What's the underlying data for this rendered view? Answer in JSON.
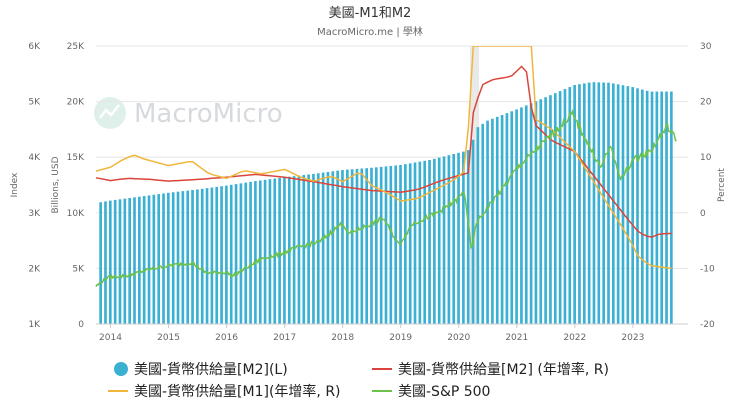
{
  "chart_data": {
    "type": "bar+line",
    "title": "美國-M1和M2",
    "subtitle": "MacroMicro.me | 學林",
    "watermark": "MacroMicro",
    "x_ticks": [
      "2014",
      "2015",
      "2016",
      "2017",
      "2018",
      "2019",
      "2020",
      "2021",
      "2022",
      "2023"
    ],
    "x_range": [
      2013.75,
      2023.95
    ],
    "axes": {
      "index": {
        "title": "Index",
        "ticks": [
          "1K",
          "2K",
          "3K",
          "4K",
          "5K",
          "6K"
        ],
        "range": [
          1000,
          6000
        ]
      },
      "billions": {
        "title": "Billions, USD",
        "ticks": [
          "0",
          "5K",
          "10K",
          "15K",
          "20K",
          "25K"
        ],
        "range": [
          0,
          25000
        ]
      },
      "percent": {
        "title": "Percent",
        "ticks": [
          "-20",
          "-10",
          "0",
          "10",
          "20",
          "30"
        ],
        "range": [
          -20,
          30
        ]
      }
    },
    "series": [
      {
        "name": "美國-貨幣供給量[M2](L)",
        "kind": "bar",
        "axis": "billions",
        "color": "#3ab0d3",
        "points": [
          [
            2013.83,
            10950
          ],
          [
            2014,
            11100
          ],
          [
            2014.5,
            11450
          ],
          [
            2015,
            11800
          ],
          [
            2015.5,
            12100
          ],
          [
            2016,
            12450
          ],
          [
            2016.5,
            12850
          ],
          [
            2017,
            13200
          ],
          [
            2017.5,
            13500
          ],
          [
            2018,
            13850
          ],
          [
            2018.5,
            14050
          ],
          [
            2019,
            14300
          ],
          [
            2019.5,
            14750
          ],
          [
            2020,
            15400
          ],
          [
            2020.16,
            15600
          ],
          [
            2020.25,
            16600
          ],
          [
            2020.33,
            17700
          ],
          [
            2020.5,
            18300
          ],
          [
            2021,
            19300
          ],
          [
            2021.5,
            20400
          ],
          [
            2022,
            21500
          ],
          [
            2022.3,
            21750
          ],
          [
            2022.6,
            21700
          ],
          [
            2023,
            21300
          ],
          [
            2023.3,
            20900
          ],
          [
            2023.67,
            20900
          ]
        ]
      },
      {
        "name": "美國-貨幣供給量[M2] (年增率, R)",
        "kind": "line",
        "axis": "percent",
        "color": "#d9453a",
        "points": [
          [
            2013.75,
            6.3
          ],
          [
            2014,
            5.8
          ],
          [
            2014.3,
            6.2
          ],
          [
            2014.7,
            6.0
          ],
          [
            2015,
            5.7
          ],
          [
            2015.5,
            6.0
          ],
          [
            2016,
            6.4
          ],
          [
            2016.5,
            6.9
          ],
          [
            2017,
            6.4
          ],
          [
            2017.5,
            5.6
          ],
          [
            2018,
            4.7
          ],
          [
            2018.5,
            4.0
          ],
          [
            2019,
            3.7
          ],
          [
            2019.3,
            4.2
          ],
          [
            2019.7,
            5.8
          ],
          [
            2020,
            6.7
          ],
          [
            2020.17,
            7.2
          ],
          [
            2020.25,
            18.0
          ],
          [
            2020.4,
            23.0
          ],
          [
            2020.6,
            24.0
          ],
          [
            2020.9,
            24.5
          ],
          [
            2021,
            25.5
          ],
          [
            2021.15,
            27.0
          ],
          [
            2021.2,
            22.0
          ],
          [
            2021.3,
            16.0
          ],
          [
            2021.6,
            13.0
          ],
          [
            2022,
            11.0
          ],
          [
            2022.3,
            7.0
          ],
          [
            2022.6,
            3.0
          ],
          [
            2022.9,
            -1.0
          ],
          [
            2023.1,
            -3.5
          ],
          [
            2023.3,
            -4.5
          ],
          [
            2023.45,
            -3.8
          ],
          [
            2023.67,
            -3.7
          ]
        ]
      },
      {
        "name": "美國-貨幣供給量[M1](年增率, R)",
        "kind": "line",
        "axis": "percent",
        "color": "#f0b63c",
        "points": [
          [
            2013.75,
            7.5
          ],
          [
            2014,
            8.2
          ],
          [
            2014.2,
            9.5
          ],
          [
            2014.4,
            10.4
          ],
          [
            2014.6,
            9.6
          ],
          [
            2015,
            8.5
          ],
          [
            2015.4,
            9.3
          ],
          [
            2015.7,
            7.0
          ],
          [
            2016,
            6.2
          ],
          [
            2016.3,
            7.6
          ],
          [
            2016.6,
            7.0
          ],
          [
            2017,
            7.8
          ],
          [
            2017.3,
            6.3
          ],
          [
            2017.5,
            5.7
          ],
          [
            2017.8,
            6.6
          ],
          [
            2018,
            5.6
          ],
          [
            2018.3,
            7.4
          ],
          [
            2018.5,
            4.9
          ],
          [
            2018.8,
            3.4
          ],
          [
            2019,
            2.1
          ],
          [
            2019.3,
            2.6
          ],
          [
            2019.6,
            4.2
          ],
          [
            2019.9,
            5.8
          ],
          [
            2020,
            6.6
          ],
          [
            2020.15,
            8.0
          ],
          [
            2020.2,
            30.0
          ],
          [
            2021.25,
            30.0
          ],
          [
            2021.3,
            17.0
          ],
          [
            2021.6,
            15.0
          ],
          [
            2022,
            11.0
          ],
          [
            2022.3,
            6.0
          ],
          [
            2022.6,
            1.0
          ],
          [
            2022.9,
            -4.0
          ],
          [
            2023.1,
            -8.0
          ],
          [
            2023.3,
            -9.5
          ],
          [
            2023.67,
            -10.0
          ]
        ]
      },
      {
        "name": "美國-S&P 500",
        "kind": "line",
        "axis": "index",
        "color": "#6cc24a",
        "points": [
          [
            2013.75,
            1680
          ],
          [
            2013.95,
            1840
          ],
          [
            2014.3,
            1870
          ],
          [
            2014.7,
            1990
          ],
          [
            2015,
            2050
          ],
          [
            2015.4,
            2100
          ],
          [
            2015.65,
            1920
          ],
          [
            2016,
            1930
          ],
          [
            2016.1,
            1860
          ],
          [
            2016.6,
            2170
          ],
          [
            2016.9,
            2250
          ],
          [
            2017.2,
            2370
          ],
          [
            2017.6,
            2480
          ],
          [
            2018,
            2820
          ],
          [
            2018.1,
            2620
          ],
          [
            2018.7,
            2900
          ],
          [
            2018.97,
            2420
          ],
          [
            2019.2,
            2800
          ],
          [
            2019.6,
            2980
          ],
          [
            2019.95,
            3220
          ],
          [
            2020.1,
            3380
          ],
          [
            2020.22,
            2300
          ],
          [
            2020.3,
            2800
          ],
          [
            2020.5,
            3100
          ],
          [
            2020.8,
            3500
          ],
          [
            2021,
            3800
          ],
          [
            2021.4,
            4200
          ],
          [
            2021.7,
            4500
          ],
          [
            2021.95,
            4780
          ],
          [
            2022.2,
            4300
          ],
          [
            2022.45,
            3800
          ],
          [
            2022.6,
            4200
          ],
          [
            2022.8,
            3600
          ],
          [
            2023,
            3950
          ],
          [
            2023.3,
            4100
          ],
          [
            2023.55,
            4500
          ],
          [
            2023.6,
            4550
          ],
          [
            2023.75,
            4300
          ]
        ]
      }
    ],
    "legend": [
      {
        "label": "美國-貨幣供給量[M2](L)",
        "color": "#3ab0d3",
        "marker": "circle"
      },
      {
        "label": "美國-貨幣供給量[M2] (年增率, R)",
        "color": "#d9453a",
        "marker": "line"
      },
      {
        "label": "美國-貨幣供給量[M1](年增率, R)",
        "color": "#f0b63c",
        "marker": "line"
      },
      {
        "label": "美國-S&P 500",
        "color": "#6cc24a",
        "marker": "line"
      }
    ],
    "legend_position": "bottom",
    "grid": "horizontal"
  }
}
